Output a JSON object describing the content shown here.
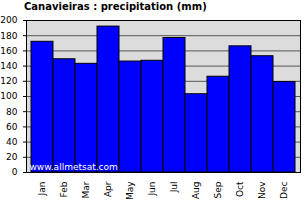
{
  "chart_data": {
    "type": "bar",
    "title": "Canavieiras : precipitation (mm)",
    "categories": [
      "Jan",
      "Feb",
      "Mar",
      "Apr",
      "May",
      "Jun",
      "Jul",
      "Aug",
      "Sep",
      "Oct",
      "Nov",
      "Dec"
    ],
    "values": [
      172,
      149,
      143,
      192,
      146,
      147,
      177,
      103,
      126,
      166,
      153,
      119
    ],
    "color": "#0000ff",
    "ylim": [
      0,
      200
    ],
    "yticks": [
      0,
      20,
      40,
      60,
      80,
      100,
      120,
      140,
      160,
      180,
      200
    ],
    "grid": true,
    "annotations": [
      "www.allmetsat.com"
    ]
  }
}
